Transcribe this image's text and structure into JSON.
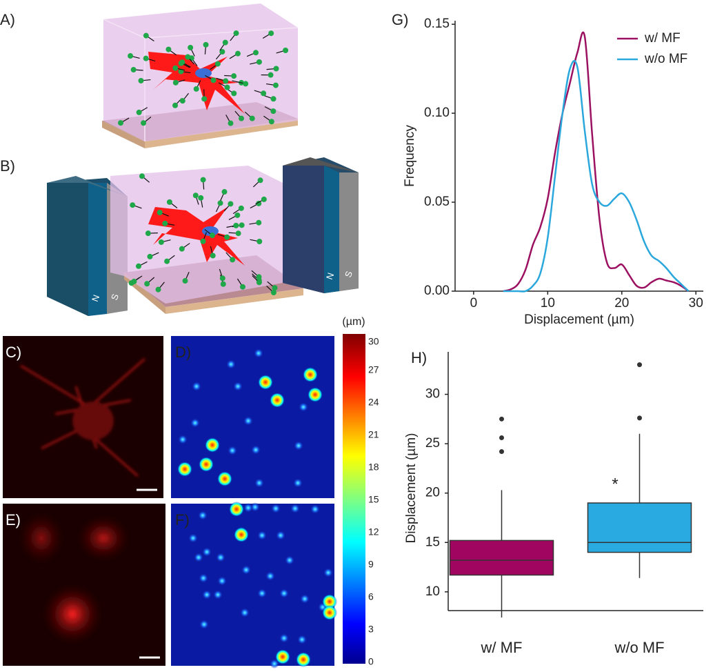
{
  "panel_labels": [
    "A)",
    "B)",
    "C)",
    "D)",
    "E)",
    "F)",
    "G)",
    "H)"
  ],
  "magnet_labels": [
    "N",
    "S"
  ],
  "chart_data": [
    {
      "type": "line",
      "panel": "G)",
      "x_label": "Displacement (µm)",
      "y_label": "Frequency",
      "x": [
        4,
        5,
        6,
        7,
        8,
        9,
        10,
        11,
        12,
        13,
        14,
        15,
        16,
        17,
        18,
        19,
        20,
        21,
        22,
        23,
        24,
        25,
        26,
        27,
        28,
        29
      ],
      "series": [
        {
          "name": "w/ MF",
          "color": "#9b1060",
          "values": [
            0,
            0.001,
            0.004,
            0.012,
            0.026,
            0.036,
            0.052,
            0.078,
            0.1,
            0.117,
            0.134,
            0.143,
            0.088,
            0.04,
            0.016,
            0.013,
            0.015,
            0.009,
            0.003,
            0.002,
            0.005,
            0.007,
            0.006,
            0.005,
            0.003,
            0
          ]
        },
        {
          "name": "w/o MF",
          "color": "#2aa7dc",
          "values": [
            0,
            0,
            0,
            0,
            0.003,
            0.01,
            0.03,
            0.065,
            0.1,
            0.125,
            0.126,
            0.09,
            0.06,
            0.05,
            0.048,
            0.052,
            0.055,
            0.05,
            0.04,
            0.028,
            0.02,
            0.017,
            0.013,
            0.008,
            0.004,
            0
          ]
        }
      ],
      "xlim": [
        -2.5,
        31
      ],
      "xticks": [
        0,
        10,
        20,
        30
      ],
      "ylim": [
        0,
        0.152
      ],
      "yticks": [
        {
          "value": 0,
          "label": "0.00"
        },
        {
          "value": 0.05,
          "label": "0.05"
        },
        {
          "value": 0.1,
          "label": "0.10"
        },
        {
          "value": 0.15,
          "label": "0.15"
        }
      ],
      "legend": "upper right"
    },
    {
      "type": "colorbar",
      "label": "(µm)",
      "ylim": [
        0,
        30
      ],
      "yticks": [
        0,
        3,
        6,
        9,
        12,
        15,
        18,
        21,
        24,
        27,
        30
      ]
    },
    {
      "type": "box",
      "panel": "H)",
      "y_label": "Displacement (µm)",
      "categories": [
        "w/ MF",
        "w/o MF"
      ],
      "boxes": [
        {
          "color": "#a0065f",
          "whisker_low": 7.4,
          "q1": 11.7,
          "median": 13.2,
          "q3": 15.2,
          "whisker_high": 20.3,
          "outliers": [
            24.2,
            25.6,
            27.5
          ]
        },
        {
          "color": "#29abe2",
          "whisker_low": 11.4,
          "q1": 14,
          "median": 15,
          "q3": 19,
          "whisker_high": 26,
          "outliers": [
            27.6,
            33
          ]
        }
      ],
      "annotation": "*",
      "ylim": [
        8.1,
        34.3
      ],
      "yticks": [
        10,
        15,
        20,
        25,
        30
      ]
    }
  ]
}
